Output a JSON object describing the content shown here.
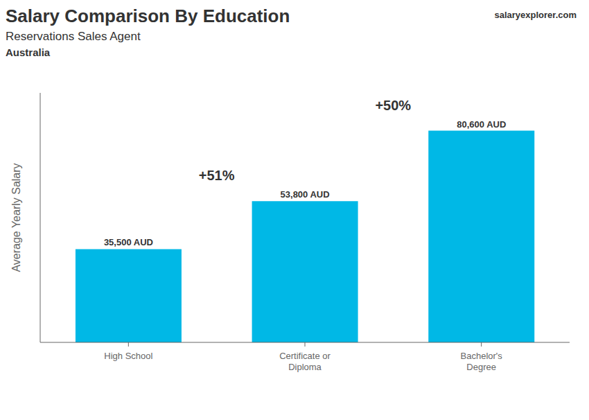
{
  "chart_data": {
    "type": "bar",
    "title": "Salary Comparison By Education",
    "subtitle": "Reservations Sales Agent",
    "annotations": {
      "country": "Australia",
      "changes": [
        "+51%",
        "+50%"
      ],
      "watermark": [
        "salary",
        "explorer",
        ".com"
      ]
    },
    "ylabel": "Average Yearly Salary",
    "categories": [
      "High School",
      "Certificate or\nDiploma",
      "Bachelor's\nDegree"
    ],
    "values": [
      35500,
      53800,
      80600
    ],
    "value_labels": [
      "35,500 AUD",
      "53,800 AUD",
      "80,600 AUD"
    ],
    "data_labels": true,
    "color": "#00b8e6",
    "ylim": [
      0,
      95000
    ],
    "tick_labels": "x",
    "grid": false
  }
}
